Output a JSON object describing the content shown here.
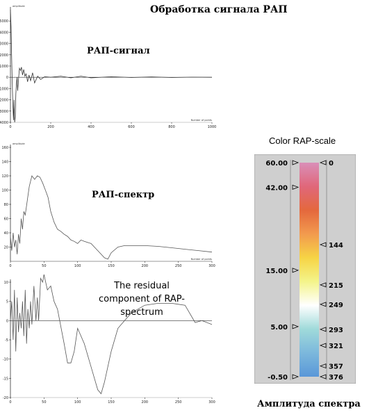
{
  "page": {
    "title": "Обработка сигнала РАП"
  },
  "chart_data": [
    {
      "type": "line",
      "title": "РАП-сигнал",
      "ylabel": "amplitude",
      "xlabel": "Number of points",
      "ylim": [
        -4000,
        6000
      ],
      "xlim": [
        0,
        1000
      ],
      "yticks": [
        -4000,
        -3000,
        -2000,
        -1000,
        0,
        1000,
        2000,
        3000,
        4000,
        5000
      ],
      "xticks": [
        0,
        200,
        400,
        600,
        800,
        1000
      ],
      "x": [
        0,
        3,
        6,
        9,
        12,
        15,
        18,
        21,
        24,
        27,
        30,
        33,
        36,
        40,
        45,
        50,
        55,
        60,
        66,
        72,
        78,
        85,
        92,
        100,
        110,
        120,
        135,
        150,
        170,
        200,
        250,
        300,
        350,
        400,
        500,
        600,
        700,
        800,
        900,
        1000
      ],
      "values": [
        6000,
        4500,
        2000,
        -500,
        -2500,
        -3800,
        -2000,
        -4000,
        -3500,
        -1500,
        -500,
        0,
        -1200,
        -200,
        800,
        600,
        900,
        200,
        700,
        100,
        300,
        -400,
        200,
        -300,
        400,
        -500,
        100,
        -200,
        50,
        0,
        100,
        -50,
        100,
        -50,
        50,
        -20,
        30,
        -20,
        10,
        0
      ]
    },
    {
      "type": "line",
      "title": "РАП-спектр",
      "ylabel": "amplitude",
      "xlabel": "Number of points",
      "ylim": [
        0,
        160
      ],
      "xlim": [
        0,
        300
      ],
      "yticks": [
        20,
        40,
        60,
        80,
        100,
        120,
        140,
        160
      ],
      "xticks": [
        0,
        50,
        100,
        150,
        200,
        250,
        300
      ],
      "x": [
        0,
        2,
        4,
        6,
        8,
        10,
        12,
        14,
        16,
        18,
        20,
        22,
        25,
        28,
        32,
        36,
        40,
        44,
        48,
        52,
        56,
        60,
        65,
        70,
        75,
        80,
        85,
        90,
        95,
        100,
        105,
        110,
        120,
        130,
        140,
        145,
        150,
        160,
        170,
        180,
        200,
        220,
        240,
        260,
        280,
        300
      ],
      "values": [
        35,
        15,
        40,
        20,
        30,
        10,
        38,
        25,
        60,
        45,
        70,
        65,
        85,
        105,
        120,
        115,
        120,
        118,
        110,
        100,
        90,
        70,
        55,
        45,
        42,
        38,
        35,
        30,
        28,
        25,
        30,
        28,
        25,
        15,
        5,
        3,
        12,
        20,
        22,
        22,
        22,
        21,
        19,
        17,
        15,
        13
      ]
    },
    {
      "type": "line",
      "title": "The residual component of RAP-spectrum",
      "ylim": [
        -20,
        10
      ],
      "xlim": [
        0,
        300
      ],
      "yticks": [
        -20,
        -15,
        -10,
        -5,
        0,
        5,
        10
      ],
      "xticks": [
        0,
        50,
        100,
        150,
        200,
        250,
        300
      ],
      "x": [
        0,
        2,
        4,
        6,
        8,
        10,
        12,
        14,
        16,
        18,
        20,
        22,
        24,
        26,
        28,
        30,
        32,
        35,
        38,
        40,
        42,
        45,
        48,
        50,
        55,
        60,
        65,
        70,
        80,
        85,
        90,
        95,
        100,
        110,
        120,
        130,
        135,
        140,
        150,
        160,
        170,
        180,
        190,
        200,
        220,
        240,
        260,
        275,
        285,
        300
      ],
      "values": [
        0,
        5,
        -5,
        8,
        -8,
        6,
        -3,
        2,
        -2,
        5,
        -4,
        8,
        -6,
        3,
        -2,
        5,
        -1,
        9,
        0,
        6,
        0,
        11,
        10,
        12,
        8,
        9,
        5,
        3,
        -6,
        -11,
        -11,
        -8,
        -2,
        -6,
        -12,
        -18,
        -19,
        -16,
        -8,
        -2,
        0,
        2,
        3,
        4,
        4.5,
        4.5,
        4,
        -0.5,
        0,
        -1
      ]
    }
  ],
  "scale": {
    "title": "Color RAP-scale",
    "caption": "Амплитуда спектра",
    "left_labels": [
      {
        "text": "60.00",
        "frac": 0.0
      },
      {
        "text": "42.00",
        "frac": 0.115
      },
      {
        "text": "15.00",
        "frac": 0.503
      },
      {
        "text": "5.00",
        "frac": 0.766
      },
      {
        "text": "-0.50",
        "frac": 1.0
      }
    ],
    "right_labels": [
      {
        "text": "0",
        "frac": 0.0
      },
      {
        "text": "144",
        "frac": 0.383
      },
      {
        "text": "215",
        "frac": 0.571
      },
      {
        "text": "249",
        "frac": 0.662
      },
      {
        "text": "293",
        "frac": 0.779
      },
      {
        "text": "321",
        "frac": 0.854
      },
      {
        "text": "357",
        "frac": 0.95
      },
      {
        "text": "376",
        "frac": 1.0
      }
    ],
    "colors": [
      "#d98fb8",
      "#e0677a",
      "#e4683d",
      "#f29a4e",
      "#f6d445",
      "#f4f48a",
      "#ffffff",
      "#9fdada",
      "#7cb8dc",
      "#5a97d8"
    ]
  }
}
